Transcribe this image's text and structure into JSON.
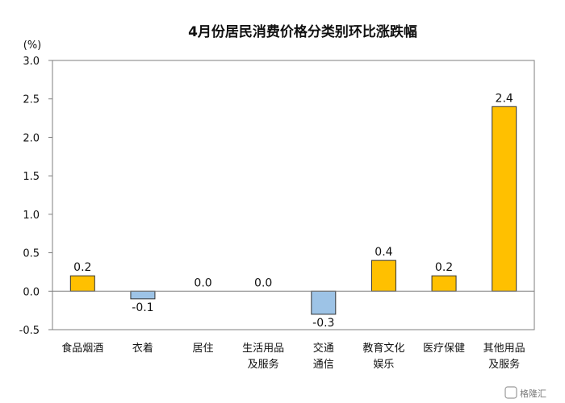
{
  "chart_data": {
    "type": "bar",
    "title": "4月份居民消费价格分类别环比涨跌幅",
    "ylabel": "(%)",
    "xlabel": "",
    "ylim": [
      -0.5,
      3.0
    ],
    "yticks": [
      "3.0",
      "2.5",
      "2.0",
      "1.5",
      "1.0",
      "0.5",
      "0.0",
      "-0.5"
    ],
    "yticks_values": [
      3.0,
      2.5,
      2.0,
      1.5,
      1.0,
      0.5,
      0.0,
      -0.5
    ],
    "categories": [
      [
        "食品烟酒"
      ],
      [
        "衣着"
      ],
      [
        "居住"
      ],
      [
        "生活用品",
        "及服务"
      ],
      [
        "交通",
        "通信"
      ],
      [
        "教育文化",
        "娱乐"
      ],
      [
        "医疗保健"
      ],
      [
        "其他用品",
        "及服务"
      ]
    ],
    "values": [
      0.2,
      -0.1,
      0.0,
      0.0,
      -0.3,
      0.4,
      0.2,
      2.4
    ],
    "value_labels": [
      "0.2",
      "-0.1",
      "0.0",
      "0.0",
      "-0.3",
      "0.4",
      "0.2",
      "2.4"
    ],
    "colors": {
      "positive": "#FFC000",
      "negative": "#9DC3E6",
      "bar_outline": "#333333",
      "axis": "#7f7f7f"
    },
    "grid": false,
    "legend": "none"
  },
  "watermark": {
    "text": "格隆汇"
  }
}
